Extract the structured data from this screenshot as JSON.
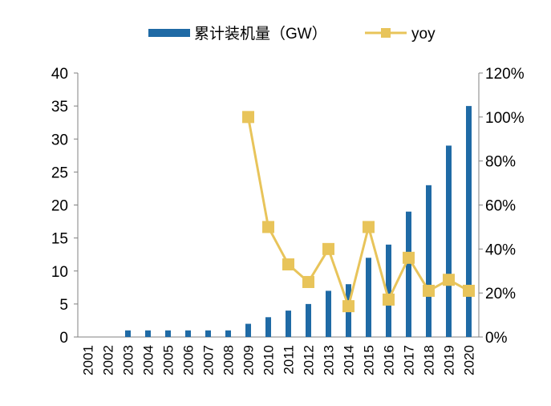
{
  "chart_data": {
    "type": "bar+line",
    "title": "",
    "categories": [
      "2001",
      "2002",
      "2003",
      "2004",
      "2005",
      "2006",
      "2007",
      "2008",
      "2009",
      "2010",
      "2011",
      "2012",
      "2013",
      "2014",
      "2015",
      "2016",
      "2017",
      "2018",
      "2019",
      "2020"
    ],
    "series": [
      {
        "name": "累计装机量（GW）",
        "type": "bar",
        "axis": "left",
        "color": "#1f6aa5",
        "values": [
          0,
          0,
          1,
          1,
          1,
          1,
          1,
          1,
          2,
          3,
          4,
          5,
          7,
          8,
          12,
          14,
          19,
          23,
          29,
          35
        ]
      },
      {
        "name": "yoy",
        "type": "line",
        "axis": "right",
        "color": "#e8c45a",
        "unit": "%",
        "values": [
          null,
          null,
          null,
          null,
          null,
          null,
          null,
          null,
          100,
          50,
          33,
          25,
          40,
          14,
          50,
          17,
          36,
          21,
          26,
          21
        ]
      }
    ],
    "ylim_left": [
      0,
      40
    ],
    "yticks_left": [
      "0",
      "5",
      "10",
      "15",
      "20",
      "25",
      "30",
      "35",
      "40"
    ],
    "ylim_right": [
      0,
      120
    ],
    "yticks_right": [
      "0%",
      "20%",
      "40%",
      "60%",
      "80%",
      "100%",
      "120%"
    ],
    "grid": false,
    "legend_position": "top"
  }
}
